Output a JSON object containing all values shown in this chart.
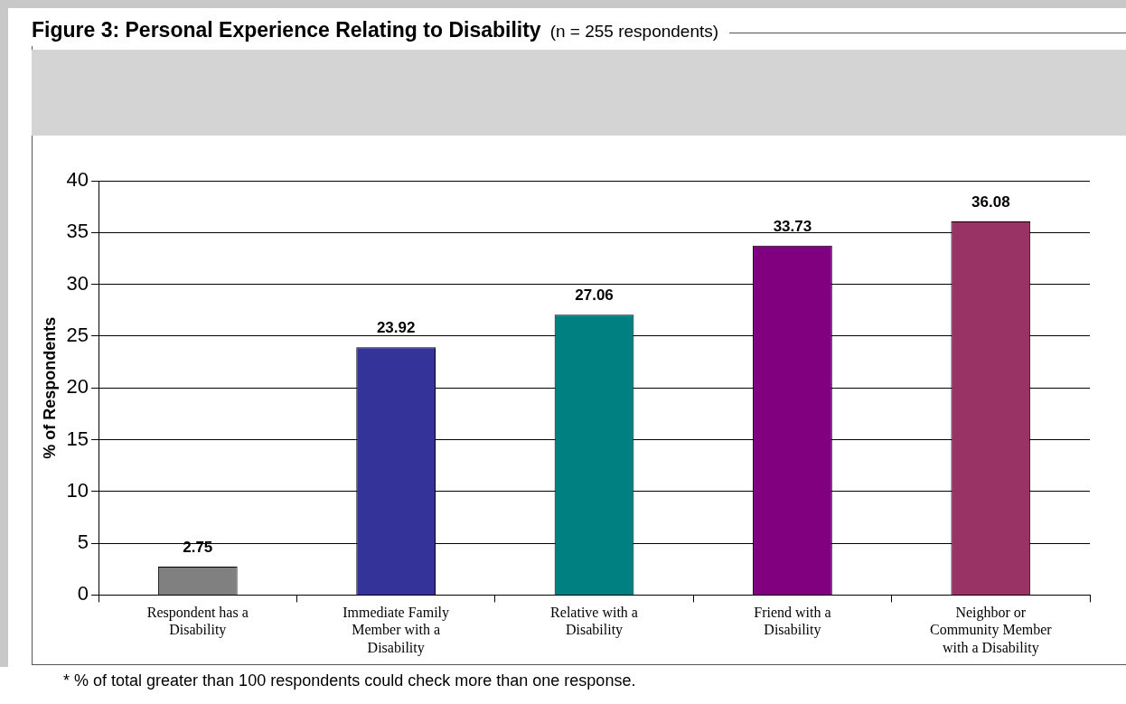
{
  "chart_data": {
    "type": "bar",
    "title": "Figure 3:  Personal Experience Relating to Disability",
    "subtitle": "(n = 255 respondents)",
    "ylabel": "% of Respondents",
    "categories": [
      "Respondent has a Disability",
      "Immediate Family Member with a Disability",
      "Relative with a Disability",
      "Friend with a Disability",
      "Neighbor or Community Member with a Disability"
    ],
    "values": [
      2.75,
      23.92,
      27.06,
      33.73,
      36.08
    ],
    "colors": [
      "#808080",
      "#333399",
      "#008080",
      "#800080",
      "#993366"
    ],
    "ylim": [
      0,
      40
    ],
    "yticks": [
      0,
      5,
      10,
      15,
      20,
      25,
      30,
      35,
      40
    ],
    "grid": "y",
    "legend": false,
    "data_labels": true,
    "annotations": [
      "* % of total greater than 100 respondents could check more than  one response."
    ]
  }
}
